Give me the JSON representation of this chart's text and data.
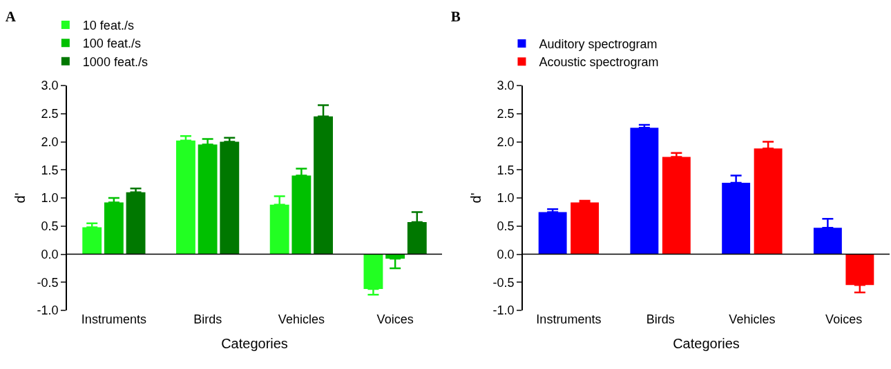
{
  "chart_data": [
    {
      "type": "bar",
      "title": "A",
      "xlabel": "Categories",
      "ylabel": "d'",
      "categories": [
        "Instruments",
        "Birds",
        "Vehicles",
        "Voices"
      ],
      "ylim": [
        -1.0,
        3.0
      ],
      "yticks": [
        {
          "value": -1,
          "label": "-1.0"
        },
        {
          "value": -0.5,
          "label": "-0.5"
        },
        {
          "value": 0,
          "label": "0.0"
        },
        {
          "value": 0.5,
          "label": "0.5"
        },
        {
          "value": 1,
          "label": "1.0"
        },
        {
          "value": 1.5,
          "label": "1.5"
        },
        {
          "value": 2,
          "label": "2.0"
        },
        {
          "value": 2.5,
          "label": "2.5"
        },
        {
          "value": 3,
          "label": "3.0"
        }
      ],
      "grid": false,
      "legend": "top left",
      "ref_lines": [
        {
          "axis": "y",
          "value": 0,
          "color": "#000000"
        }
      ],
      "series": [
        {
          "name": "10 feat./s",
          "color": "#22ff22",
          "values": [
            0.48,
            2.02,
            0.88,
            -0.62
          ],
          "errors": [
            [
              0.48,
              0.55
            ],
            [
              2.02,
              2.1
            ],
            [
              0.88,
              1.03
            ],
            [
              -0.72,
              -0.62
            ]
          ]
        },
        {
          "name": "100 feat./s",
          "color": "#00c000",
          "values": [
            0.92,
            1.95,
            1.4,
            -0.08
          ],
          "errors": [
            [
              0.92,
              1.0
            ],
            [
              1.95,
              2.05
            ],
            [
              1.4,
              1.52
            ],
            [
              -0.25,
              -0.08
            ]
          ]
        },
        {
          "name": "1000 feat./s",
          "color": "#007800",
          "values": [
            1.1,
            2.0,
            2.45,
            0.57
          ],
          "errors": [
            [
              1.1,
              1.17
            ],
            [
              2.0,
              2.07
            ],
            [
              2.45,
              2.65
            ],
            [
              0.57,
              0.75
            ]
          ]
        }
      ]
    },
    {
      "type": "bar",
      "title": "B",
      "xlabel": "Categories",
      "ylabel": "d'",
      "categories": [
        "Instruments",
        "Birds",
        "Vehicles",
        "Voices"
      ],
      "ylim": [
        -1.0,
        3.0
      ],
      "yticks": [
        {
          "value": -1,
          "label": "-1.0"
        },
        {
          "value": -0.5,
          "label": "-0.5"
        },
        {
          "value": 0,
          "label": "0.0"
        },
        {
          "value": 0.5,
          "label": "0.5"
        },
        {
          "value": 1,
          "label": "1.0"
        },
        {
          "value": 1.5,
          "label": "1.5"
        },
        {
          "value": 2,
          "label": "2.0"
        },
        {
          "value": 2.5,
          "label": "2.5"
        },
        {
          "value": 3,
          "label": "3.0"
        }
      ],
      "grid": false,
      "legend": "top left",
      "ref_lines": [
        {
          "axis": "y",
          "value": 0,
          "color": "#000000"
        }
      ],
      "series": [
        {
          "name": "Auditory spectrogram",
          "color": "#0000ff",
          "values": [
            0.75,
            2.25,
            1.27,
            0.47
          ],
          "errors": [
            [
              0.75,
              0.8
            ],
            [
              2.25,
              2.3
            ],
            [
              1.27,
              1.4
            ],
            [
              0.47,
              0.63
            ]
          ]
        },
        {
          "name": "Acoustic spectrogram",
          "color": "#ff0000",
          "values": [
            0.92,
            1.73,
            1.88,
            -0.55
          ],
          "errors": [
            [
              0.92,
              0.95
            ],
            [
              1.73,
              1.8
            ],
            [
              1.88,
              2.0
            ],
            [
              -0.68,
              -0.55
            ]
          ]
        }
      ]
    }
  ]
}
